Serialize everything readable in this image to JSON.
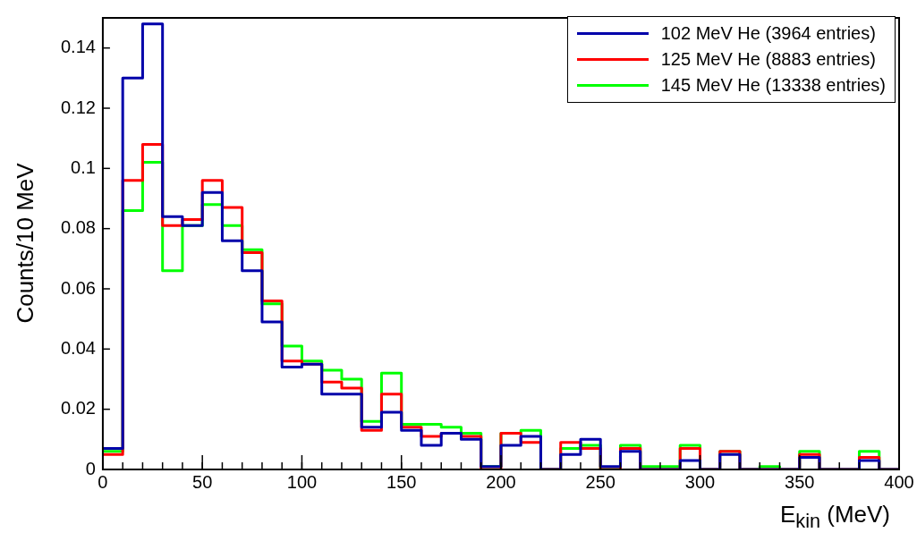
{
  "chart_data": {
    "type": "histogram",
    "xlabel": "E$_{kin}$ (MeV)",
    "ylabel": "Counts/10 MeV",
    "bins": [
      0,
      10,
      20,
      30,
      40,
      50,
      60,
      70,
      80,
      90,
      100,
      110,
      120,
      130,
      140,
      150,
      160,
      170,
      180,
      190,
      200,
      210,
      220,
      230,
      240,
      250,
      260,
      270,
      280,
      290,
      300,
      310,
      320,
      330,
      340,
      350,
      360,
      370,
      380,
      390,
      400
    ],
    "series": [
      {
        "name": "102 MeV He (3964 entries)",
        "color": "#0000aa",
        "values": [
          0.007,
          0.13,
          0.148,
          0.084,
          0.081,
          0.092,
          0.076,
          0.066,
          0.049,
          0.034,
          0.035,
          0.025,
          0.025,
          0.014,
          0.019,
          0.013,
          0.008,
          0.012,
          0.01,
          0.001,
          0.008,
          0.011,
          0,
          0.005,
          0.01,
          0.001,
          0.006,
          0,
          0,
          0.003,
          0,
          0.005,
          0,
          0,
          0,
          0.004,
          0,
          0,
          0.003,
          0
        ]
      },
      {
        "name": "125 MeV He (8883 entries)",
        "color": "#ff0000",
        "values": [
          0.005,
          0.096,
          0.108,
          0.081,
          0.083,
          0.096,
          0.087,
          0.072,
          0.056,
          0.036,
          0.035,
          0.029,
          0.027,
          0.013,
          0.025,
          0.014,
          0.011,
          0.012,
          0.011,
          0,
          0.012,
          0.009,
          0,
          0.009,
          0.007,
          0,
          0.007,
          0,
          0,
          0.007,
          0,
          0.006,
          0,
          0,
          0,
          0.005,
          0,
          0,
          0.004,
          0
        ]
      },
      {
        "name": "145 MeV He (13338 entries)",
        "color": "#00ff00",
        "values": [
          0.006,
          0.086,
          0.102,
          0.066,
          0.081,
          0.088,
          0.081,
          0.073,
          0.055,
          0.041,
          0.036,
          0.033,
          0.03,
          0.016,
          0.032,
          0.015,
          0.015,
          0.014,
          0.012,
          0.001,
          0.012,
          0.013,
          0,
          0.007,
          0.008,
          0,
          0.008,
          0.001,
          0.001,
          0.008,
          0,
          0.006,
          0,
          0.001,
          0,
          0.006,
          0,
          0,
          0.006,
          0
        ]
      }
    ],
    "xlim": [
      0,
      400
    ],
    "xticks": [
      0,
      50,
      100,
      150,
      200,
      250,
      300,
      350,
      400
    ],
    "ylim": [
      0,
      0.15
    ],
    "yticks": [
      0,
      0.02,
      0.04,
      0.06,
      0.08,
      0.1,
      0.12,
      0.14
    ],
    "grid": false,
    "legend": "top right"
  }
}
